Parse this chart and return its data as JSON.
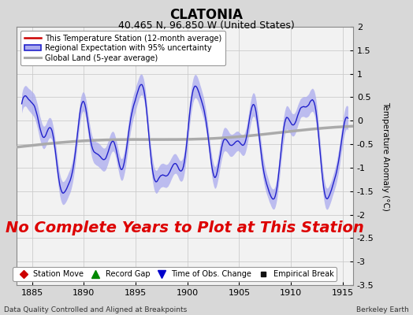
{
  "title": "CLATONIA",
  "subtitle": "40.465 N, 96.850 W (United States)",
  "xlabel_bottom": "Data Quality Controlled and Aligned at Breakpoints",
  "xlabel_right": "Berkeley Earth",
  "ylabel": "Temperature Anomaly (°C)",
  "xlim": [
    1883.5,
    1916.0
  ],
  "ylim": [
    -3.5,
    2.0
  ],
  "yticks": [
    -3.5,
    -3.0,
    -2.5,
    -2.0,
    -1.5,
    -1.0,
    -0.5,
    0.0,
    0.5,
    1.0,
    1.5,
    2.0
  ],
  "xticks": [
    1885,
    1890,
    1895,
    1900,
    1905,
    1910,
    1915
  ],
  "bg_color": "#d8d8d8",
  "plot_bg_color": "#f2f2f2",
  "annotation_text": "No Complete Years to Plot at This Station",
  "annotation_color": "#dd0000",
  "annotation_fontsize": 14,
  "legend1_entries": [
    {
      "label": "This Temperature Station (12-month average)",
      "color": "#cc0000",
      "lw": 1.5
    },
    {
      "label": "Regional Expectation with 95% uncertainty",
      "color": "#2222cc",
      "band_color": "#aaaaee",
      "lw": 1.5
    },
    {
      "label": "Global Land (5-year average)",
      "color": "#aaaaaa",
      "lw": 2.5
    }
  ],
  "marker_legend": [
    {
      "label": "Station Move",
      "color": "#cc0000",
      "marker": "D",
      "markersize": 5
    },
    {
      "label": "Record Gap",
      "color": "#008800",
      "marker": "^",
      "markersize": 7
    },
    {
      "label": "Time of Obs. Change",
      "color": "#0000cc",
      "marker": "v",
      "markersize": 7
    },
    {
      "label": "Empirical Break",
      "color": "#111111",
      "marker": "s",
      "markersize": 5
    }
  ],
  "seed": 12345,
  "regional_color": "#2222cc",
  "regional_band_color": "#aaaaee",
  "global_color": "#aaaaaa",
  "station_color": "#cc0000"
}
